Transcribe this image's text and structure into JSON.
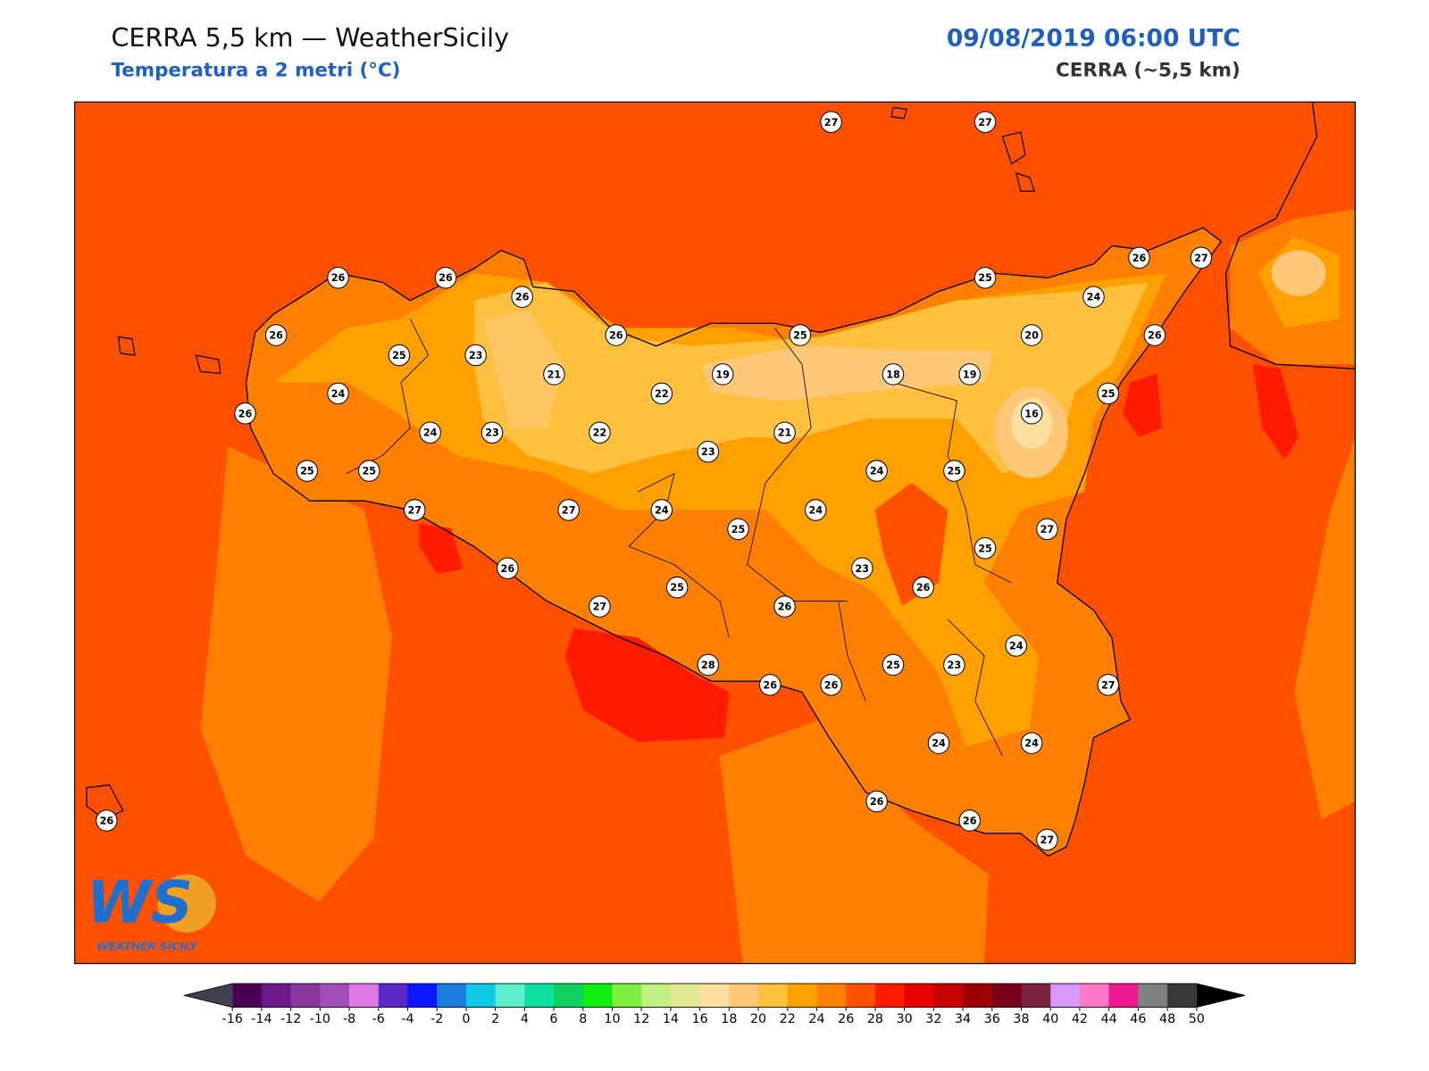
{
  "header": {
    "title": "CERRA 5,5 km — WeatherSicily",
    "subtitle": "Temperatura a 2 metri (°C)",
    "datetime": "09/08/2019 06:00 UTC",
    "model": "CERRA (~5,5 km)"
  },
  "logo": {
    "mark": "WS",
    "name": "WEATHER SICILY"
  },
  "stations": [
    27,
    27,
    26,
    26,
    26,
    25,
    26,
    27,
    24,
    26,
    25,
    23,
    26,
    25,
    20,
    26,
    21,
    19,
    18,
    19,
    24,
    22,
    25,
    26,
    16,
    24,
    23,
    22,
    21,
    23,
    25,
    25,
    24,
    25,
    27,
    27,
    24,
    24,
    25,
    27,
    25,
    26,
    23,
    25,
    26,
    27,
    26,
    24,
    28,
    25,
    23,
    26,
    26,
    27,
    24,
    24,
    26,
    26,
    26,
    27
  ],
  "colorbar": {
    "ticks": [
      -16,
      -14,
      -12,
      -10,
      -8,
      -6,
      -4,
      -2,
      0,
      2,
      4,
      6,
      8,
      10,
      12,
      14,
      16,
      18,
      20,
      22,
      24,
      26,
      28,
      30,
      32,
      34,
      36,
      38,
      40,
      42,
      44,
      46,
      48,
      50
    ],
    "colors": [
      "#4a0050",
      "#6a1a8a",
      "#8a3a9e",
      "#a050b8",
      "#e078e8",
      "#5a28c8",
      "#0a1aff",
      "#1a7ee0",
      "#10c8e8",
      "#60f0d0",
      "#10e0a0",
      "#10d060",
      "#10f010",
      "#80f040",
      "#c0f080",
      "#e0e890",
      "#ffe0a0",
      "#ffc878",
      "#ffc040",
      "#ffa000",
      "#ff8000",
      "#ff5000",
      "#ff1a00",
      "#e80000",
      "#c80000",
      "#a00000",
      "#780018",
      "#7a2040",
      "#d898f8",
      "#ff78c8",
      "#f01890",
      "#808080",
      "#383838"
    ],
    "under_color": "#404050",
    "over_color": "#000000"
  }
}
